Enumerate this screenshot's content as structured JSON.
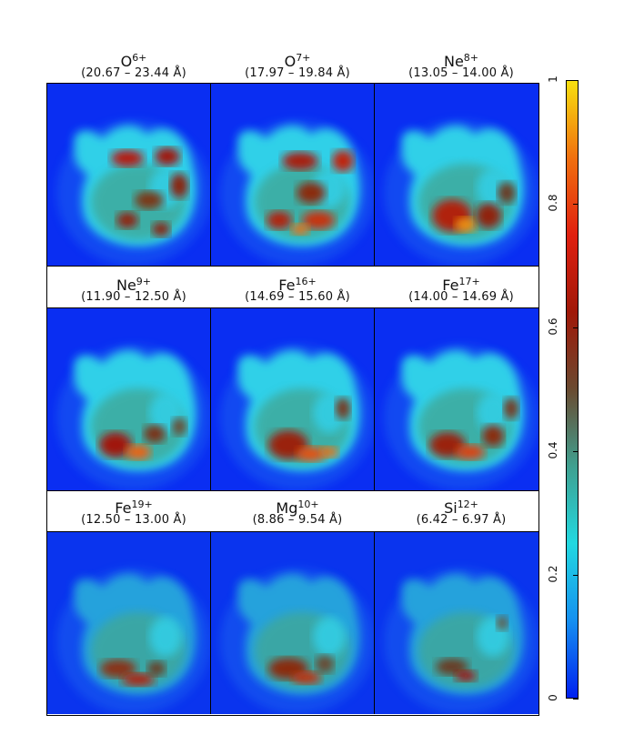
{
  "panels": [
    {
      "ion": "O",
      "charge": "6+",
      "range": "(20.67 – 23.44 Å)"
    },
    {
      "ion": "O",
      "charge": "7+",
      "range": "(17.97 – 19.84 Å)"
    },
    {
      "ion": "Ne",
      "charge": "8+",
      "range": "(13.05 – 14.00 Å)"
    },
    {
      "ion": "Ne",
      "charge": "9+",
      "range": "(11.90 – 12.50 Å)"
    },
    {
      "ion": "Fe",
      "charge": "16+",
      "range": "(14.69 – 15.60 Å)"
    },
    {
      "ion": "Fe",
      "charge": "17+",
      "range": "(14.00 – 14.69 Å)"
    },
    {
      "ion": "Fe",
      "charge": "19+",
      "range": "(12.50 – 13.00 Å)"
    },
    {
      "ion": "Mg",
      "charge": "10+",
      "range": "(8.86 – 9.54 Å)"
    },
    {
      "ion": "Si",
      "charge": "12+",
      "range": "(6.42 – 6.97 Å)"
    }
  ],
  "colorbar": {
    "ticks": [
      "0",
      "0.2",
      "0.4",
      "0.6",
      "0.8",
      "1"
    ],
    "colors": [
      "#0020f0",
      "#1590f0",
      "#22d8e0",
      "#3fa090",
      "#6a4a30",
      "#a01808",
      "#e02010",
      "#f07010",
      "#f8e010"
    ]
  }
}
